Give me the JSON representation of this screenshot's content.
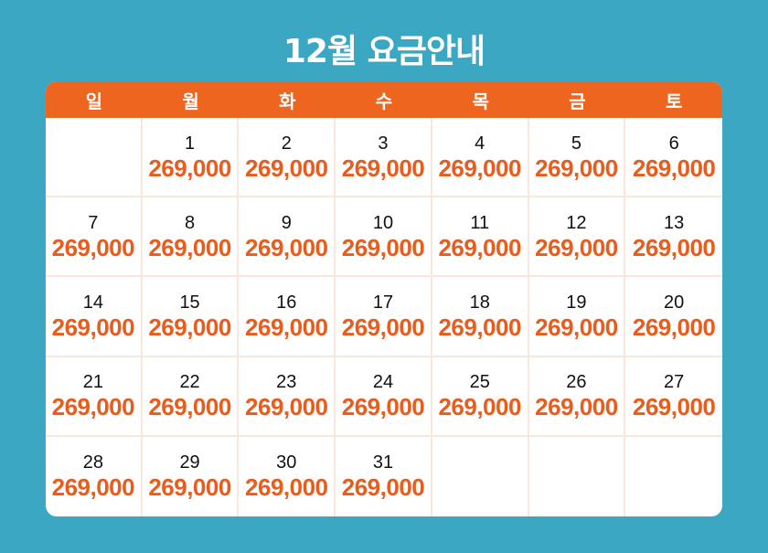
{
  "title": "12월 요금안내",
  "colors": {
    "background": "#3ba7c3",
    "header": "#ee6520",
    "price": "#ea5b1c"
  },
  "weekdays": [
    "일",
    "월",
    "화",
    "수",
    "목",
    "금",
    "토"
  ],
  "weeks": [
    [
      {
        "day": "",
        "price": ""
      },
      {
        "day": "1",
        "price": "269,000"
      },
      {
        "day": "2",
        "price": "269,000"
      },
      {
        "day": "3",
        "price": "269,000"
      },
      {
        "day": "4",
        "price": "269,000"
      },
      {
        "day": "5",
        "price": "269,000"
      },
      {
        "day": "6",
        "price": "269,000"
      }
    ],
    [
      {
        "day": "7",
        "price": "269,000"
      },
      {
        "day": "8",
        "price": "269,000"
      },
      {
        "day": "9",
        "price": "269,000"
      },
      {
        "day": "10",
        "price": "269,000"
      },
      {
        "day": "11",
        "price": "269,000"
      },
      {
        "day": "12",
        "price": "269,000"
      },
      {
        "day": "13",
        "price": "269,000"
      }
    ],
    [
      {
        "day": "14",
        "price": "269,000"
      },
      {
        "day": "15",
        "price": "269,000"
      },
      {
        "day": "16",
        "price": "269,000"
      },
      {
        "day": "17",
        "price": "269,000"
      },
      {
        "day": "18",
        "price": "269,000"
      },
      {
        "day": "19",
        "price": "269,000"
      },
      {
        "day": "20",
        "price": "269,000"
      }
    ],
    [
      {
        "day": "21",
        "price": "269,000"
      },
      {
        "day": "22",
        "price": "269,000"
      },
      {
        "day": "23",
        "price": "269,000"
      },
      {
        "day": "24",
        "price": "269,000"
      },
      {
        "day": "25",
        "price": "269,000"
      },
      {
        "day": "26",
        "price": "269,000"
      },
      {
        "day": "27",
        "price": "269,000"
      }
    ],
    [
      {
        "day": "28",
        "price": "269,000"
      },
      {
        "day": "29",
        "price": "269,000"
      },
      {
        "day": "30",
        "price": "269,000"
      },
      {
        "day": "31",
        "price": "269,000"
      },
      {
        "day": "",
        "price": ""
      },
      {
        "day": "",
        "price": ""
      },
      {
        "day": "",
        "price": ""
      }
    ]
  ]
}
